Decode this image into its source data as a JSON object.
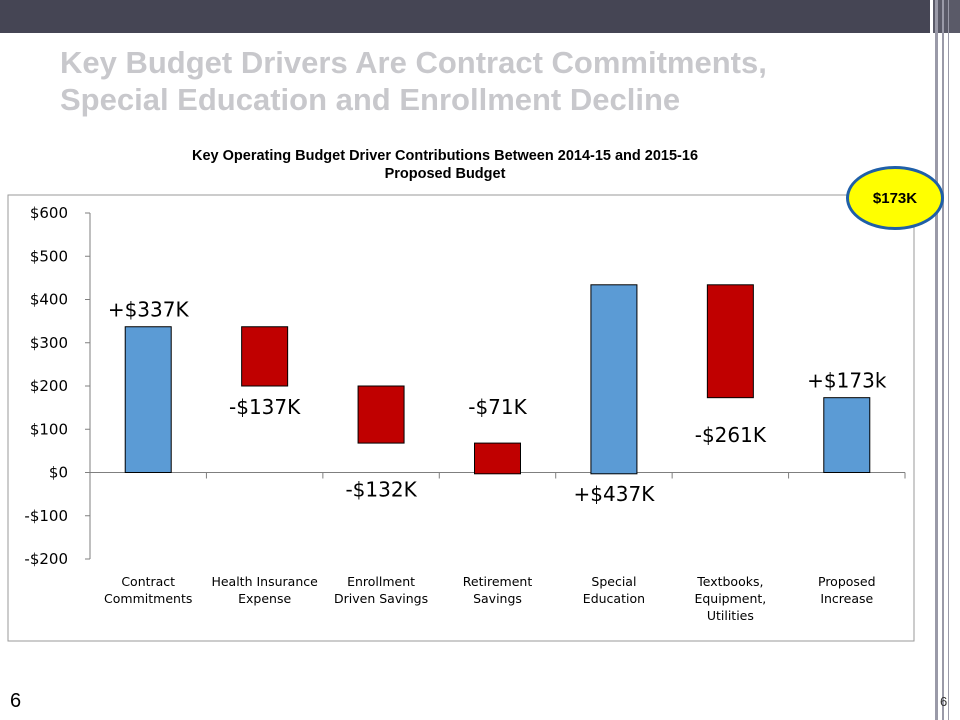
{
  "slide": {
    "title_line1": "Key Budget Drivers Are Contract Commitments,",
    "title_line2": "Special Education and Enrollment Decline",
    "badge": "$173K",
    "page_left": "6",
    "page_right": "6"
  },
  "chart_data": {
    "type": "bar",
    "subtype": "waterfall",
    "title_line1": "Key Operating Budget Driver Contributions Between 2014-15 and 2015-16",
    "title_line2": "Proposed Budget",
    "xlabel": "",
    "ylabel": "",
    "ylim": [
      -200,
      600
    ],
    "yticks": [
      600,
      500,
      400,
      300,
      200,
      100,
      0,
      -100,
      -200
    ],
    "ytick_labels": [
      "$600",
      "$500",
      "$400",
      "$300",
      "$200",
      "$100",
      "$0",
      "-$100",
      "-$200"
    ],
    "grid": false,
    "legend": "none",
    "colors": {
      "increase": "#5b9bd5",
      "decrease": "#c00000",
      "outline": "#000000"
    },
    "categories": [
      {
        "lines": [
          "Contract",
          "Commitments"
        ],
        "start": 0,
        "end": 337,
        "kind": "increase",
        "label": "+$337K",
        "label_pos": "above"
      },
      {
        "lines": [
          "Health Insurance",
          "Expense"
        ],
        "start": 337,
        "end": 200,
        "kind": "decrease",
        "label": "-$137K",
        "label_pos": "below"
      },
      {
        "lines": [
          "Enrollment",
          "Driven Savings"
        ],
        "start": 200,
        "end": 68,
        "kind": "decrease",
        "label": "-$132K",
        "label_pos": "below-far"
      },
      {
        "lines": [
          "Retirement",
          "Savings"
        ],
        "start": 68,
        "end": -3,
        "kind": "decrease",
        "label": "-$71K",
        "label_pos": "above"
      },
      {
        "lines": [
          "Special",
          "Education"
        ],
        "start": -3,
        "end": 434,
        "kind": "increase",
        "label": "+$437K",
        "label_pos": "below-far"
      },
      {
        "lines": [
          "Textbooks,",
          "Equipment,",
          "Utilities"
        ],
        "start": 434,
        "end": 173,
        "kind": "decrease",
        "label": "-$261K",
        "label_pos": "below"
      },
      {
        "lines": [
          "Proposed",
          "Increase"
        ],
        "start": 0,
        "end": 173,
        "kind": "increase",
        "label": "+$173k",
        "label_pos": "above"
      }
    ]
  }
}
